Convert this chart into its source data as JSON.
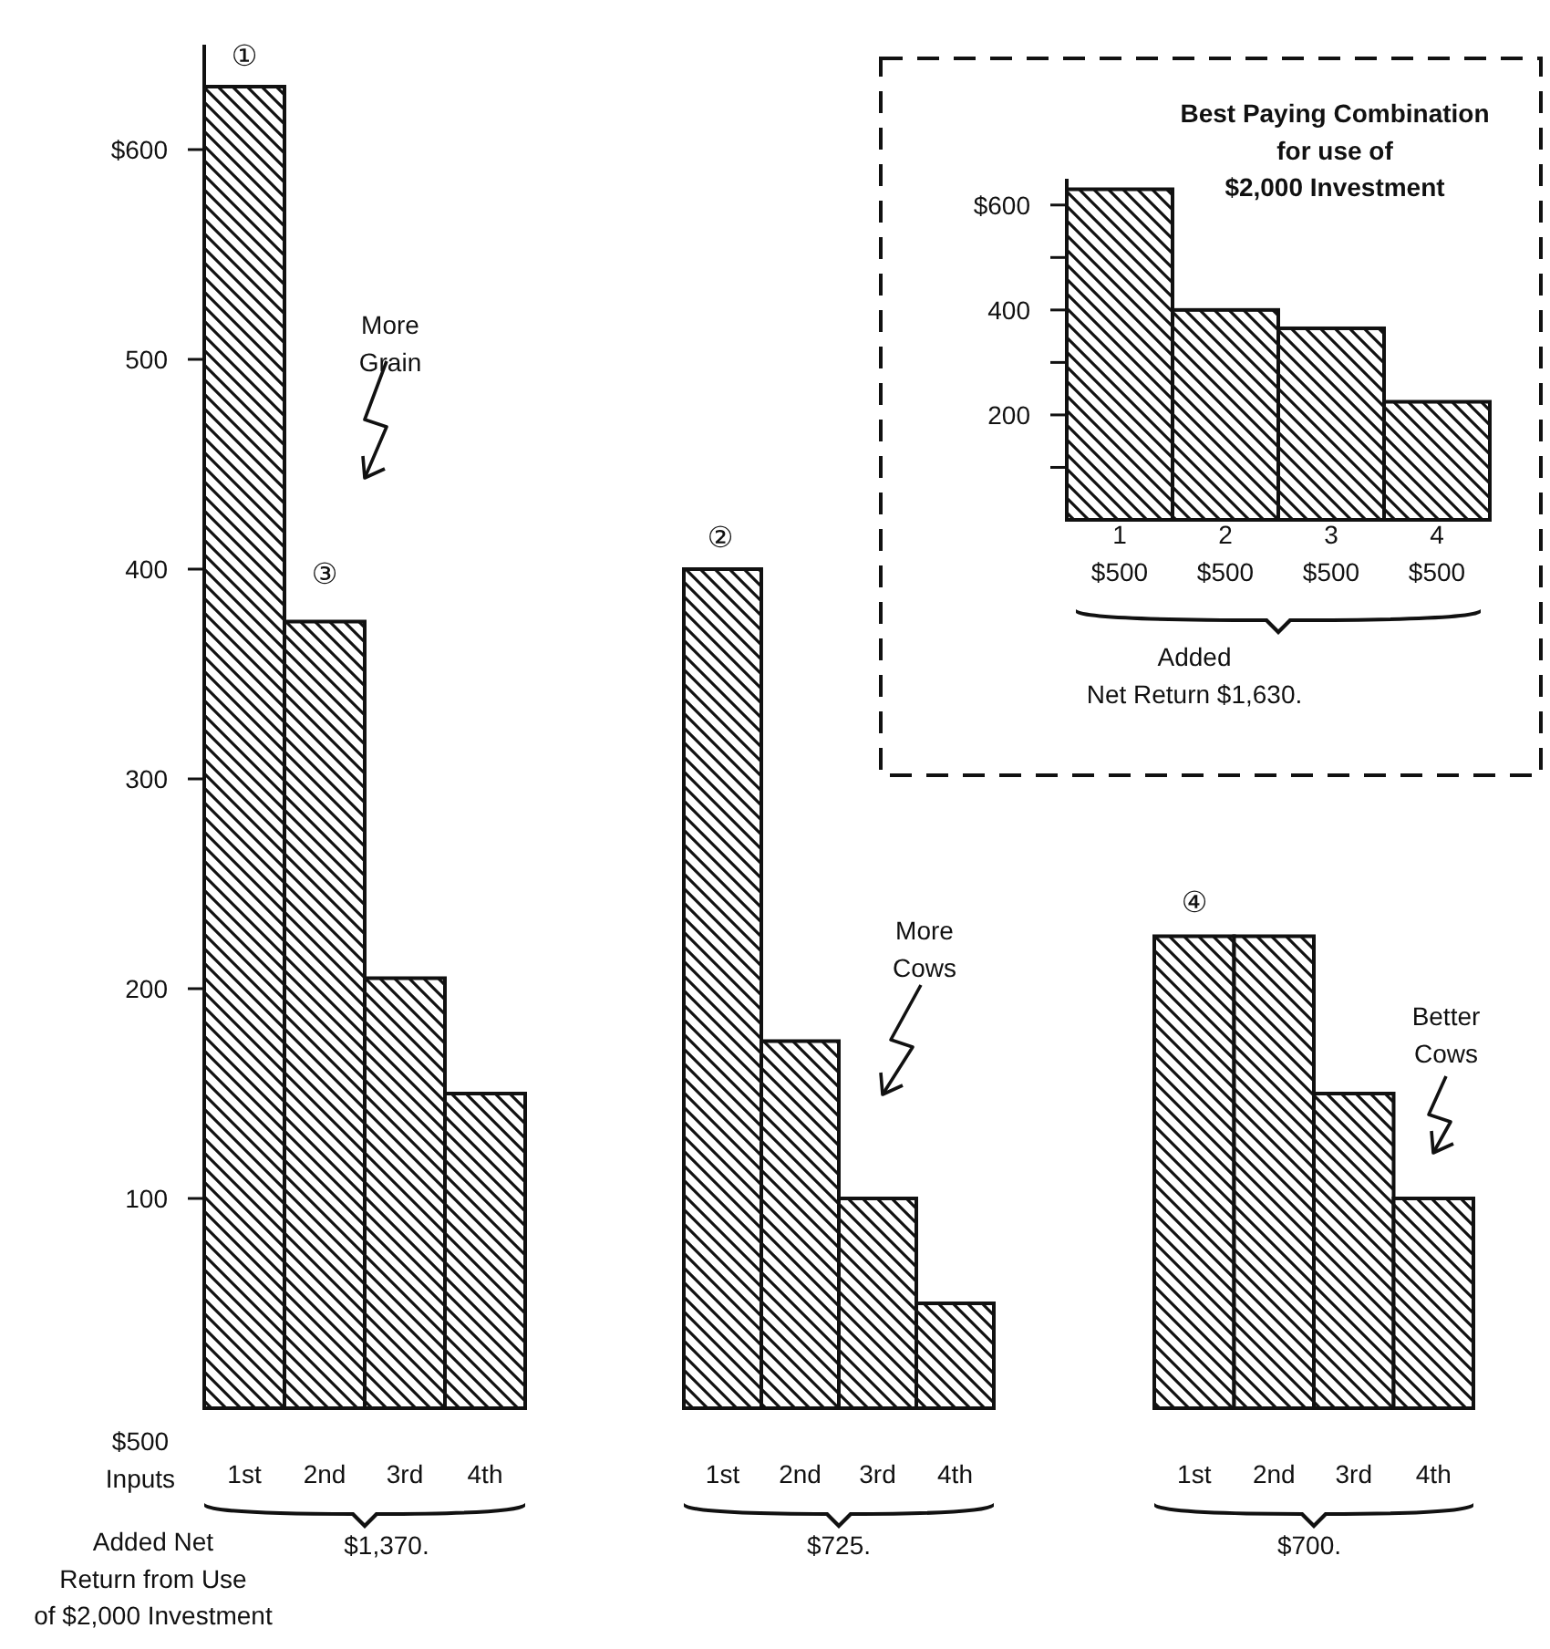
{
  "chart_data": [
    {
      "type": "bar",
      "categories": [
        "1st",
        "2nd",
        "3rd",
        "4th",
        "1st",
        "2nd",
        "3rd",
        "4th",
        "1st",
        "2nd",
        "3rd",
        "4th"
      ],
      "values": [
        630,
        375,
        205,
        150,
        400,
        175,
        100,
        50,
        225,
        225,
        150,
        100
      ],
      "color": "#111111",
      "ylim": [
        0,
        650
      ],
      "yticks": [
        {
          "value": 600,
          "label": "$600"
        },
        500,
        400,
        300,
        200,
        {
          "value": 100,
          "label": "100"
        }
      ],
      "annotations": [
        "①",
        "③",
        "②",
        "④",
        "More\nGrain",
        "More\nCows",
        "Better\nCows",
        "$500\nInputs",
        "Added Net\nReturn from Use\nof $2,000 Investment",
        "$1,370.",
        "$725.",
        "$700."
      ]
    },
    {
      "type": "bar",
      "title": "Best Paying Combination\nfor use of\n$2,000 Investment",
      "categories": [
        "1\n$500",
        "2\n$500",
        "3\n$500",
        "4\n$500"
      ],
      "values": [
        630,
        400,
        365,
        225
      ],
      "colors": [
        "#111111",
        "#111111",
        "#111111",
        "#111111"
      ],
      "ylim": [
        0,
        650
      ],
      "yticks": [
        {
          "value": 600,
          "label": "$600"
        },
        {
          "value": 500,
          "label": null
        },
        400,
        {
          "value": 300,
          "label": null
        },
        200,
        {
          "value": 100,
          "label": null
        }
      ],
      "annotations": [
        "Added\nNet Return $1,630."
      ]
    }
  ]
}
